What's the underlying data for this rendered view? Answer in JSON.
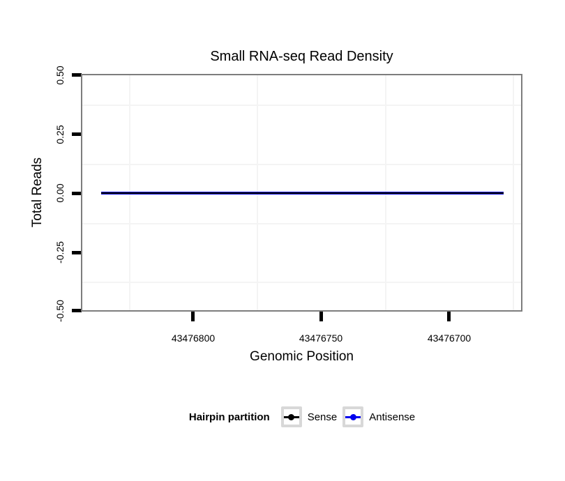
{
  "title": "Small RNA-seq Read Density",
  "axes": {
    "y": {
      "title": "Total Reads",
      "ticks": [
        "0.50",
        "0.25",
        "0.00",
        "-0.25",
        "-0.50"
      ]
    },
    "x": {
      "title": "Genomic Position",
      "ticks": [
        "43476800",
        "43476750",
        "43476700"
      ]
    }
  },
  "legend": {
    "title": "Hairpin partition",
    "items": [
      {
        "label": "Sense",
        "color": "#000000",
        "marker": "line-with-point"
      },
      {
        "label": "Antisense",
        "color": "#0000ee",
        "marker": "line-with-point"
      }
    ]
  },
  "colors": {
    "panel_border": "#7d7d7d",
    "minor_gridline": "#f4f4f4",
    "tick": "#000000",
    "sense": "#000000",
    "antisense": "#0000ee",
    "legend_key_border": "#d8d8d8",
    "background": "#ffffff"
  },
  "chart_data": {
    "type": "line",
    "title": "Small RNA-seq Read Density",
    "xlabel": "Genomic Position",
    "ylabel": "Total Reads",
    "x_axis_reversed": true,
    "xlim": [
      43476844,
      43476672
    ],
    "ylim": [
      -0.5,
      0.5
    ],
    "x_ticks": [
      43476800,
      43476750,
      43476700
    ],
    "y_ticks": [
      0.5,
      0.25,
      0.0,
      -0.25,
      -0.5
    ],
    "grid": "minor-only",
    "legend_title": "Hairpin partition",
    "legend_position": "bottom",
    "series": [
      {
        "name": "Sense",
        "color": "#000000",
        "x": [
          43476836,
          43476679
        ],
        "y": [
          0,
          0
        ]
      },
      {
        "name": "Antisense",
        "color": "#0000ee",
        "x": [
          43476836,
          43476679
        ],
        "y": [
          0,
          0
        ]
      }
    ]
  }
}
